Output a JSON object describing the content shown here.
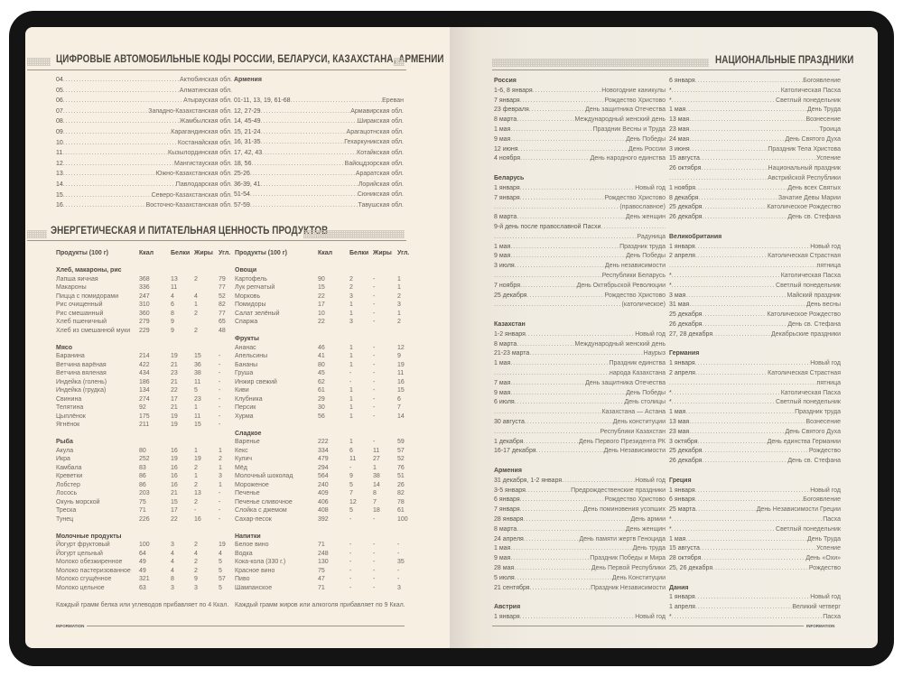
{
  "codes": {
    "title": "ЦИФРОВЫЕ АВТОМОБИЛЬНЫЕ КОДЫ РОССИИ, БЕЛАРУСИ, КАЗАХСТАНА, АРМЕНИИ",
    "kazakhstan": [
      [
        "04",
        "Актюбинская обл."
      ],
      [
        "05",
        "Алматинская обл."
      ],
      [
        "06",
        "Атырауская обл."
      ],
      [
        "07",
        "Западно-Казахстанская обл."
      ],
      [
        "08",
        "Жамбылская обл."
      ],
      [
        "09",
        "Карагандинская обл."
      ],
      [
        "10",
        "Костанайская обл."
      ],
      [
        "11",
        "Кызылординская обл."
      ],
      [
        "12",
        "Мангистауская обл."
      ],
      [
        "13",
        "Южно-Казахстанская обл."
      ],
      [
        "14",
        "Павлодарская обл."
      ],
      [
        "15",
        "Северо-Казахстанская обл."
      ],
      [
        "16",
        "Восточно-Казахстанская обл."
      ]
    ],
    "armenia_title": "Армения",
    "armenia": [
      [
        "01-11, 13, 19, 61-68",
        "Ереван"
      ],
      [
        "12, 27-29",
        "Армавирская обл."
      ],
      [
        "14, 45-49",
        "Ширакская обл."
      ],
      [
        "15, 21-24",
        "Арагацотнская обл."
      ],
      [
        "16, 31-35",
        "Гехаркуникская обл."
      ],
      [
        "17, 42, 43",
        "Котайкская обл."
      ],
      [
        "18, 56",
        "Вайоцдзорская обл."
      ],
      [
        "25-26",
        "Араратская обл."
      ],
      [
        "36-39, 41",
        "Лорийская обл."
      ],
      [
        "51-54",
        "Сюникская обл."
      ],
      [
        "57-59",
        "Тавушская обл."
      ]
    ]
  },
  "nutrition": {
    "title": "ЭНЕРГЕТИЧЕСКАЯ И ПИТАТЕЛЬНАЯ ЦЕННОСТЬ ПРОДУКТОВ",
    "headers": [
      "Продукты (100 г)",
      "Ккал",
      "Белки",
      "Жиры",
      "Угл."
    ],
    "left": [
      {
        "group": "Хлеб, макароны, рис",
        "rows": [
          [
            "Лапша яичная",
            "368",
            "13",
            "2",
            "79"
          ],
          [
            "Макароны",
            "336",
            "11",
            "",
            "77"
          ],
          [
            "Пицца с помидорами",
            "247",
            "4",
            "4",
            "52"
          ],
          [
            "Рис очищенный",
            "310",
            "6",
            "1",
            "82"
          ],
          [
            "Рис смешанный",
            "360",
            "8",
            "2",
            "77"
          ],
          [
            "Хлеб пшеничный",
            "279",
            "9",
            "",
            "65"
          ],
          [
            "Хлеб из смешанной муки",
            "229",
            "9",
            "2",
            "48"
          ]
        ]
      },
      {
        "group": "Мясо",
        "rows": [
          [
            "Баранина",
            "214",
            "19",
            "15",
            "-"
          ],
          [
            "Ветчина варёная",
            "422",
            "21",
            "36",
            "-"
          ],
          [
            "Ветчина вяленая",
            "434",
            "23",
            "38",
            "-"
          ],
          [
            "Индейка (голень)",
            "186",
            "21",
            "11",
            "-"
          ],
          [
            "Индейка (грудка)",
            "134",
            "22",
            "5",
            "-"
          ],
          [
            "Свинина",
            "274",
            "17",
            "23",
            "-"
          ],
          [
            "Телятина",
            "92",
            "21",
            "1",
            "-"
          ],
          [
            "Цыплёнок",
            "175",
            "19",
            "11",
            "-"
          ],
          [
            "Ягнёнок",
            "211",
            "19",
            "15",
            "-"
          ]
        ]
      },
      {
        "group": "Рыба",
        "rows": [
          [
            "Акула",
            "80",
            "16",
            "1",
            "1"
          ],
          [
            "Икра",
            "252",
            "19",
            "19",
            "2"
          ],
          [
            "Камбала",
            "83",
            "16",
            "2",
            "1"
          ],
          [
            "Креветки",
            "86",
            "16",
            "1",
            "3"
          ],
          [
            "Лобстер",
            "86",
            "16",
            "2",
            "1"
          ],
          [
            "Лосось",
            "203",
            "21",
            "13",
            "-"
          ],
          [
            "Окунь морской",
            "75",
            "15",
            "2",
            "-"
          ],
          [
            "Треска",
            "71",
            "17",
            "-",
            "-"
          ],
          [
            "Тунец",
            "226",
            "22",
            "16",
            "-"
          ]
        ]
      },
      {
        "group": "Молочные продукты",
        "rows": [
          [
            "Йогурт фруктовый",
            "100",
            "3",
            "2",
            "19"
          ],
          [
            "Йогурт цельный",
            "64",
            "4",
            "4",
            "4"
          ],
          [
            "Молоко обезжиренное",
            "49",
            "4",
            "2",
            "5"
          ],
          [
            "Молоко пастеризованное",
            "49",
            "4",
            "2",
            "5"
          ],
          [
            "Молоко сгущённое",
            "321",
            "8",
            "9",
            "57"
          ],
          [
            "Молоко цельное",
            "63",
            "3",
            "3",
            "5"
          ]
        ]
      }
    ],
    "right": [
      {
        "group": "Овощи",
        "rows": [
          [
            "Картофель",
            "90",
            "2",
            "-",
            "1"
          ],
          [
            "Лук репчатый",
            "15",
            "2",
            "-",
            "1"
          ],
          [
            "Морковь",
            "22",
            "3",
            "-",
            "2"
          ],
          [
            "Помидоры",
            "17",
            "1",
            "-",
            "3"
          ],
          [
            "Салат зелёный",
            "10",
            "1",
            "-",
            "1"
          ],
          [
            "Спаржа",
            "22",
            "3",
            "-",
            "2"
          ]
        ]
      },
      {
        "group": "Фрукты",
        "rows": [
          [
            "Ананас",
            "46",
            "1",
            "-",
            "12"
          ],
          [
            "Апельсины",
            "41",
            "1",
            "-",
            "9"
          ],
          [
            "Бананы",
            "80",
            "1",
            "-",
            "19"
          ],
          [
            "Груша",
            "45",
            "-",
            "-",
            "11"
          ],
          [
            "Инжир свежий",
            "62",
            "-",
            "-",
            "16"
          ],
          [
            "Киви",
            "61",
            "1",
            "-",
            "15"
          ],
          [
            "Клубника",
            "29",
            "1",
            "-",
            "6"
          ],
          [
            "Персик",
            "30",
            "1",
            "-",
            "7"
          ],
          [
            "Хурма",
            "56",
            "1",
            "-",
            "14"
          ]
        ]
      },
      {
        "group": "Сладкое",
        "rows": [
          [
            "Варенье",
            "222",
            "1",
            "-",
            "59"
          ],
          [
            "Кекс",
            "334",
            "6",
            "11",
            "57"
          ],
          [
            "Кулич",
            "479",
            "11",
            "27",
            "52"
          ],
          [
            "Мёд",
            "294",
            "-",
            "1",
            "76"
          ],
          [
            "Молочный шоколад",
            "564",
            "9",
            "38",
            "51"
          ],
          [
            "Мороженое",
            "240",
            "5",
            "14",
            "26"
          ],
          [
            "Печенье",
            "409",
            "7",
            "8",
            "82"
          ],
          [
            "Печенье сливочное",
            "406",
            "12",
            "7",
            "78"
          ],
          [
            "Слойка с джемом",
            "408",
            "5",
            "18",
            "61"
          ],
          [
            "Сахар-песок",
            "392",
            "-",
            "-",
            "100"
          ]
        ]
      },
      {
        "group": "Напитки",
        "rows": [
          [
            "Белое вино",
            "71",
            "-",
            "-",
            "-"
          ],
          [
            "Водка",
            "248",
            "-",
            "-",
            "-"
          ],
          [
            "Кока-кола (330 г.)",
            "130",
            "-",
            "-",
            "35"
          ],
          [
            "Красное вино",
            "75",
            "-",
            "-",
            "-"
          ],
          [
            "Пиво",
            "47",
            "-",
            "-",
            "-"
          ],
          [
            "Шампанское",
            "71",
            "-",
            "-",
            "3"
          ]
        ]
      }
    ],
    "note_left": "Каждый грамм белка или углеводов прибавляет по 4 Ккал.",
    "note_right": "Каждый грамм жиров или алкоголя прибавляет по 9 Ккал."
  },
  "holidays": {
    "title": "НАЦИОНАЛЬНЫЕ ПРАЗДНИКИ",
    "col1": [
      {
        "country": "Россия",
        "rows": [
          [
            "1-6, 8 января",
            "Новогодние каникулы"
          ],
          [
            "7 января",
            "Рождество Христово"
          ],
          [
            "23 февраля",
            "День защитника Отечества"
          ],
          [
            "8 марта",
            "Международный женский день"
          ],
          [
            "1 мая",
            "Праздник Весны и Труда"
          ],
          [
            "9 мая",
            "День Победы"
          ],
          [
            "12 июня",
            "День России"
          ],
          [
            "4 ноября",
            "День народного единства"
          ]
        ]
      },
      {
        "country": "Беларусь",
        "rows": [
          [
            "1 января",
            "Новый год"
          ],
          [
            "7 января",
            "Рождество Христово"
          ],
          [
            "",
            "(православное)"
          ],
          [
            "8 марта",
            "День женщин"
          ],
          [
            "9-й день после православной Пасхи",
            ""
          ],
          [
            "",
            "Радуница"
          ],
          [
            "1 мая",
            "Праздник труда"
          ],
          [
            "9 мая",
            "День Победы"
          ],
          [
            "3 июля",
            "День независимости"
          ],
          [
            "",
            "Республики Беларусь"
          ],
          [
            "7 ноября",
            "День Октябрьской Революции"
          ],
          [
            "25 декабря",
            "Рождество Христово"
          ],
          [
            "",
            "(католическое)"
          ]
        ]
      },
      {
        "country": "Казахстан",
        "rows": [
          [
            "1-2 января",
            "Новый год"
          ],
          [
            "8 марта",
            "Международный женский день"
          ],
          [
            "21-23 марта",
            "Наурыз"
          ],
          [
            "1 мая",
            "Праздник единства"
          ],
          [
            "",
            "народа Казахстана"
          ],
          [
            "7 мая",
            "День защитника Отечества"
          ],
          [
            "9 мая",
            "День Победы"
          ],
          [
            "6 июля",
            "День столицы"
          ],
          [
            "",
            "Казахстана — Астана"
          ],
          [
            "30 августа",
            "День конституции"
          ],
          [
            "",
            "Республики Казахстан"
          ],
          [
            "1 декабря",
            "День Первого Президента РК"
          ],
          [
            "16-17 декабря",
            "День Независимости"
          ]
        ]
      },
      {
        "country": "Армения",
        "rows": [
          [
            "31 декабря, 1-2 января",
            "Новый год"
          ],
          [
            "3-5 января",
            "Предрождественские праздники"
          ],
          [
            "6 января",
            "Рождество Христово"
          ],
          [
            "7 января",
            "День поминовения усопших"
          ],
          [
            "28 января",
            "День армии"
          ],
          [
            "8 марта",
            "День женщин"
          ],
          [
            "24 апреля",
            "День памяти жертв Геноцида"
          ],
          [
            "1 мая",
            "День труда"
          ],
          [
            "9 мая",
            "Праздник Победы и Мира"
          ],
          [
            "28 мая",
            "День Первой Республики"
          ],
          [
            "5 июля",
            "День Конституции"
          ],
          [
            "21 сентября",
            "Праздник Независимости"
          ]
        ]
      },
      {
        "country": "Австрия",
        "rows": [
          [
            "1 января",
            "Новый год"
          ]
        ]
      }
    ],
    "col2": [
      {
        "country": "",
        "rows": [
          [
            "6 января",
            "Богоявление"
          ],
          [
            "*",
            "Католическая Пасха"
          ],
          [
            "*",
            "Светлый понедельник"
          ],
          [
            "1 мая",
            "День Труда"
          ],
          [
            "13 мая",
            "Вознесение"
          ],
          [
            "23 мая",
            "Троица"
          ],
          [
            "24 мая",
            "День Святого Духа"
          ],
          [
            "3 июня",
            "Праздник Тела Христова"
          ],
          [
            "15 августа",
            "Успение"
          ],
          [
            "26 октября",
            "Национальный праздник"
          ],
          [
            "",
            "Австрийской Республики"
          ],
          [
            "1 ноября",
            "День всех Святых"
          ],
          [
            "8 декабря",
            "Зачатие Девы Марии"
          ],
          [
            "25 декабря",
            "Католическое Рождество"
          ],
          [
            "26 декабря",
            "День св. Стефана"
          ]
        ]
      },
      {
        "country": "Великобритания",
        "rows": [
          [
            "1 января",
            "Новый год"
          ],
          [
            "2 апреля",
            "Католическая Страстная"
          ],
          [
            "",
            "пятница"
          ],
          [
            "*",
            "Католическая Пасха"
          ],
          [
            "*",
            "Светлый понедельник"
          ],
          [
            "3 мая",
            "Майский праздник"
          ],
          [
            "31 мая",
            "День весны"
          ],
          [
            "25 декабря",
            "Католическое Рождество"
          ],
          [
            "26 декабря",
            "День св. Стефана"
          ],
          [
            "27, 28 декабря",
            "Декабрьские праздники"
          ]
        ]
      },
      {
        "country": "Германия",
        "rows": [
          [
            "1 января",
            "Новый год"
          ],
          [
            "2 апреля",
            "Католическая Страстная"
          ],
          [
            "",
            "пятница"
          ],
          [
            "*",
            "Католическая Пасха"
          ],
          [
            "*",
            "Светлый понедельник"
          ],
          [
            "1 мая",
            "Праздник труда"
          ],
          [
            "13 мая",
            "Вознесение"
          ],
          [
            "23 мая",
            "День Святого Духа"
          ],
          [
            "3 октября",
            "День единства Германии"
          ],
          [
            "25 декабря",
            "Рождество"
          ],
          [
            "26 декабря",
            "День св. Стефана"
          ]
        ]
      },
      {
        "country": "Греция",
        "rows": [
          [
            "1 января",
            "Новый год"
          ],
          [
            "6 января",
            "Богоявление"
          ],
          [
            "25 марта",
            "День Независимости Греции"
          ],
          [
            "*",
            "Пасха"
          ],
          [
            "*",
            "Светлый понедельник"
          ],
          [
            "1 мая",
            "День Труда"
          ],
          [
            "15 августа",
            "Успение"
          ],
          [
            "28 октября",
            "День «Охи»"
          ],
          [
            "25, 26 декабря",
            "Рождество"
          ]
        ]
      },
      {
        "country": "Дания",
        "rows": [
          [
            "1 января",
            "Новый год"
          ],
          [
            "1 апреля",
            "Великий четверг"
          ],
          [
            "*",
            "Пасха"
          ]
        ]
      }
    ]
  },
  "footer": {
    "left": "INFORMATION",
    "right": "INFORMATION"
  }
}
